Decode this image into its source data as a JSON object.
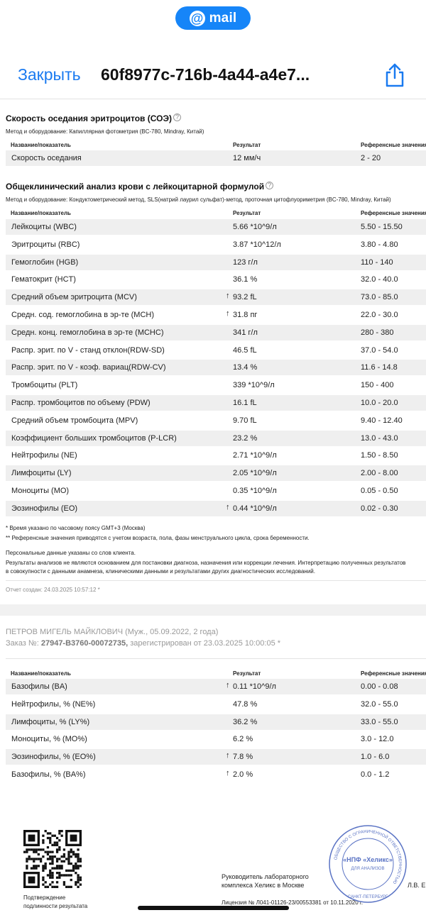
{
  "top": {
    "brand": "mail",
    "close_label": "Закрыть",
    "document_name": "60f8977c-716b-4a44-a4e7..."
  },
  "esr": {
    "title": "Скорость оседания эритроцитов (СОЭ)",
    "method": "Метод и оборудование: Капиллярная фотометрия (BC-780, Mindray, Китай)",
    "headers": [
      "Название/показатель",
      "Результат",
      "Референсные значения"
    ],
    "rows": [
      {
        "name": "Скорость оседания",
        "flag": "",
        "result": "12 мм/ч",
        "ref": "2 - 20"
      }
    ]
  },
  "cbc": {
    "title": "Общеклинический анализ крови с лейкоцитарной формулой",
    "method": "Метод и оборудование: Кондуктометрический метод, SLS(натрий лаурил сульфат)-метод, проточная цитофлуориметрия (BC-780, Mindray, Китай)",
    "headers": [
      "Название/показатель",
      "Результат",
      "Референсные значения"
    ],
    "rows": [
      {
        "name": "Лейкоциты (WBC)",
        "flag": "",
        "result": "5.66 *10^9/л",
        "ref": "5.50 - 15.50"
      },
      {
        "name": "Эритроциты (RBC)",
        "flag": "",
        "result": "3.87 *10^12/л",
        "ref": "3.80 - 4.80"
      },
      {
        "name": "Гемоглобин (HGB)",
        "flag": "",
        "result": "123 г/л",
        "ref": "110 - 140"
      },
      {
        "name": "Гематокрит (HCT)",
        "flag": "",
        "result": "36.1 %",
        "ref": "32.0 - 40.0"
      },
      {
        "name": "Средний объем эритроцита (MCV)",
        "flag": "↑",
        "result": "93.2 fL",
        "ref": "73.0 - 85.0"
      },
      {
        "name": "Средн. сод. гемоглобина в эр-те (MCH)",
        "flag": "↑",
        "result": "31.8 пг",
        "ref": "22.0 - 30.0"
      },
      {
        "name": "Средн. конц. гемоглобина в эр-те (MCHC)",
        "flag": "",
        "result": "341 г/л",
        "ref": "280 - 380"
      },
      {
        "name": "Распр. эрит. по V - станд отклон(RDW-SD)",
        "flag": "",
        "result": "46.5 fL",
        "ref": "37.0 - 54.0"
      },
      {
        "name": "Распр. эрит. по V - коэф. вариац(RDW-CV)",
        "flag": "",
        "result": "13.4 %",
        "ref": "11.6 - 14.8"
      },
      {
        "name": "Тромбоциты (PLT)",
        "flag": "",
        "result": "339 *10^9/л",
        "ref": "150 - 400"
      },
      {
        "name": "Распр. тромбоцитов по объему (PDW)",
        "flag": "",
        "result": "16.1 fL",
        "ref": "10.0 - 20.0"
      },
      {
        "name": "Средний объем тромбоцита (MPV)",
        "flag": "",
        "result": "9.70 fL",
        "ref": "9.40 - 12.40"
      },
      {
        "name": "Коэффициент больших тромбоцитов (P-LCR)",
        "flag": "",
        "result": "23.2 %",
        "ref": "13.0 - 43.0"
      },
      {
        "name": "Нейтрофилы (NE)",
        "flag": "",
        "result": "2.71 *10^9/л",
        "ref": "1.50 - 8.50"
      },
      {
        "name": "Лимфоциты (LY)",
        "flag": "",
        "result": "2.05 *10^9/л",
        "ref": "2.00 - 8.00"
      },
      {
        "name": "Моноциты (MO)",
        "flag": "",
        "result": "0.35 *10^9/л",
        "ref": "0.05 - 0.50"
      },
      {
        "name": "Эозинофилы (EO)",
        "flag": "↑",
        "result": "0.44 *10^9/л",
        "ref": "0.02 - 0.30"
      }
    ]
  },
  "notes": {
    "n1": "* Время указано по часовому поясу GMT+3 (Москва)",
    "n2": "** Референсные значения приводятся с учетом возраста, пола, фазы менструального цикла, срока беременности.",
    "n3": "Персональные данные указаны со слов клиента.",
    "n4": "Результаты анализов не являются основанием для постановки диагноза, назначения или коррекции лечения. Интерпретацию полученных результатов",
    "n5": "в совокупности с данными анамнеза, клиническими данными и результатами других диагностических исследований.",
    "created": "Отчет создан: 24.03.2025 10:57:12 *"
  },
  "page2": {
    "patient": "ПЕТРОВ МИГЕЛЬ МАЙКЛОВИЧ (Муж., 05.09.2022, 2 года)",
    "order_prefix": "Заказ №:",
    "order_number": "27947-B3760-00072735,",
    "order_suffix": "зарегистрирован от 23.03.2025 10:00:05 *",
    "headers": [
      "Название/показатель",
      "Результат",
      "Референсные значения"
    ],
    "rows": [
      {
        "name": "Базофилы (BA)",
        "flag": "↑",
        "result": "0.11 *10^9/л",
        "ref": "0.00 - 0.08"
      },
      {
        "name": "Нейтрофилы, % (NE%)",
        "flag": "",
        "result": "47.8 %",
        "ref": "32.0 - 55.0"
      },
      {
        "name": "Лимфоциты, % (LY%)",
        "flag": "",
        "result": "36.2 %",
        "ref": "33.0 - 55.0"
      },
      {
        "name": "Моноциты, % (MO%)",
        "flag": "",
        "result": "6.2 %",
        "ref": "3.0 - 12.0"
      },
      {
        "name": "Эозинофилы, % (EO%)",
        "flag": "↑",
        "result": "7.8 %",
        "ref": "1.0 - 6.0"
      },
      {
        "name": "Базофилы, % (BA%)",
        "flag": "↑",
        "result": "2.0 %",
        "ref": "0.0 - 1.2"
      }
    ]
  },
  "footer": {
    "qr_caption_1": "Подтверждение",
    "qr_caption_2": "подлинности результата",
    "head_1": "Руководитель лабораторного",
    "head_2": "комплекса Хеликс в Москве",
    "signer": "Л.В. Е",
    "license": "Лицензия № Л041-01126-23/00553381 от 10.11.2020 г.",
    "stamp_center": "«НПФ «Хеликс»",
    "stamp_sub": "ДЛЯ АНАЛИЗОВ",
    "stamp_ring": "ОБЩЕСТВО С ОГРАНИЧЕННОЙ ОТВЕТСТВЕННОСТЬЮ",
    "stamp_city": "САНКТ-ПЕТЕРБУРГ"
  },
  "colors": {
    "accent": "#1685f8",
    "link": "#1a7af0",
    "shade": "#efefef",
    "stamp": "#5a73c4"
  }
}
